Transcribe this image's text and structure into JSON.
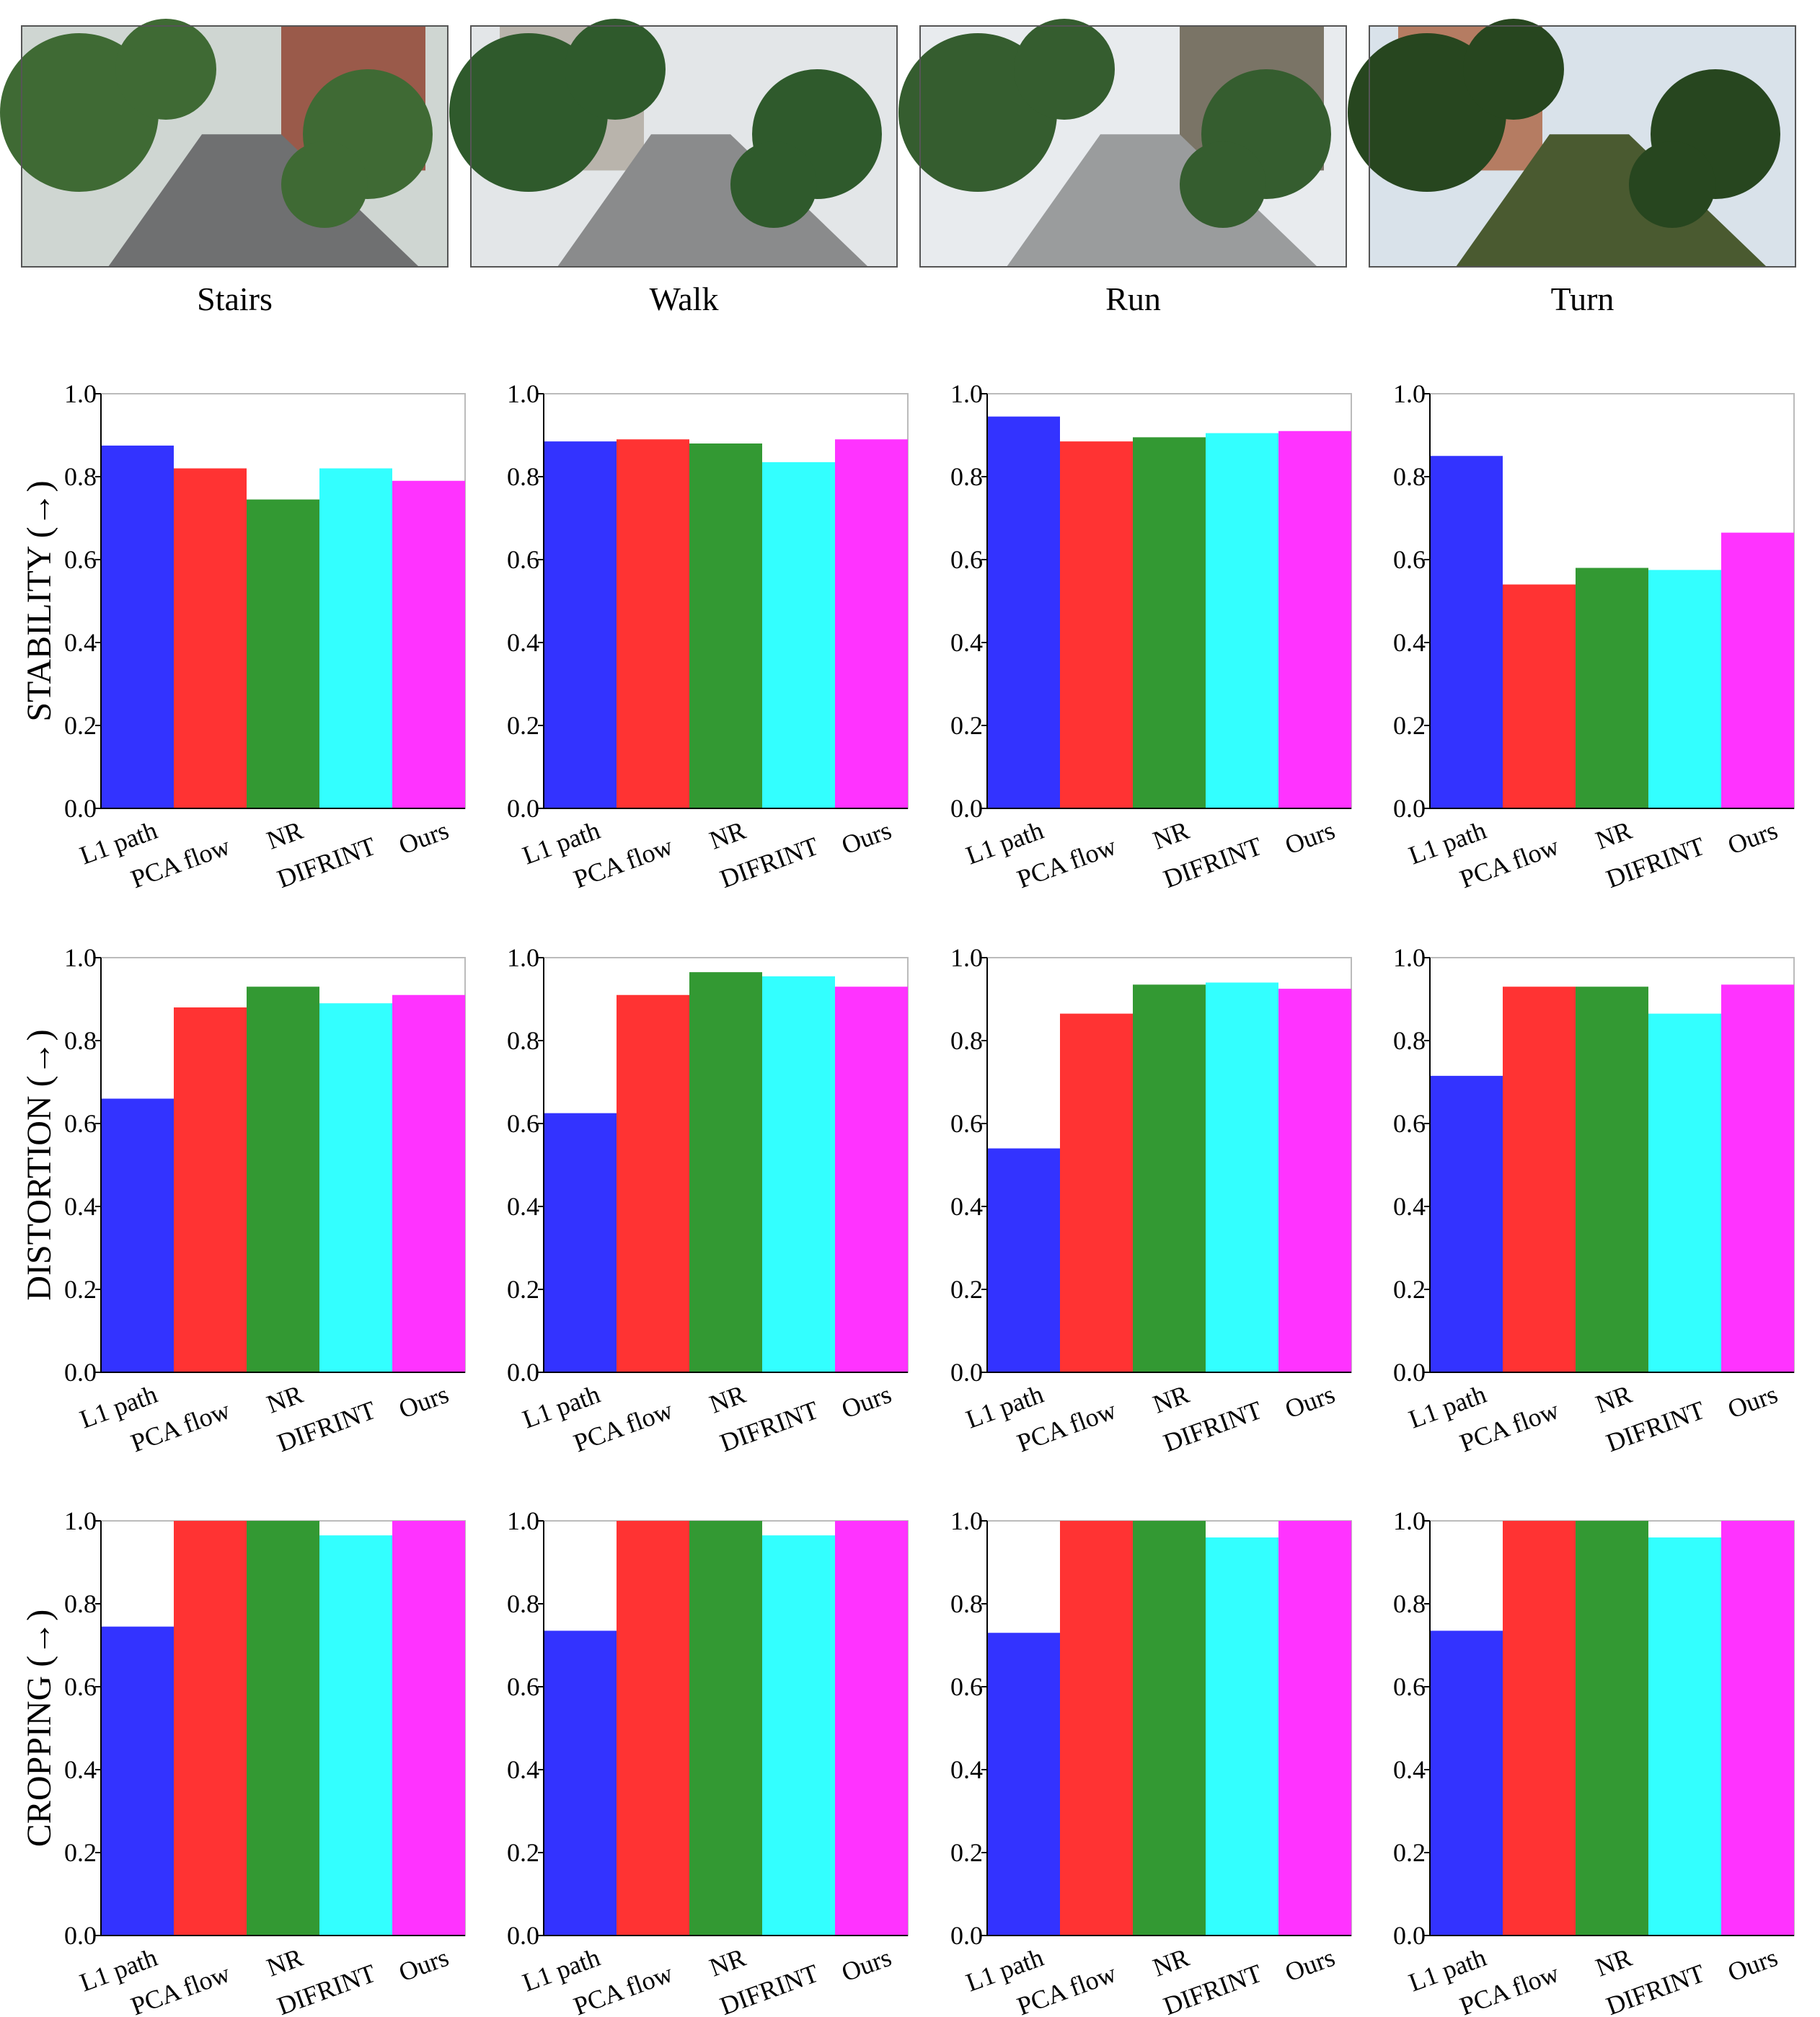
{
  "photos": [
    {
      "label": "Stairs"
    },
    {
      "label": "Walk"
    },
    {
      "label": "Run"
    },
    {
      "label": "Turn"
    }
  ],
  "chart_data": [
    {
      "type": "bar",
      "ylabel": "STABILITY (→)",
      "categories": [
        "L1 path",
        "PCA flow",
        "NR",
        "DIFRINT",
        "Ours"
      ],
      "values": [
        0.875,
        0.82,
        0.745,
        0.82,
        0.79
      ],
      "colors": [
        "#3333ff",
        "#ff3333",
        "#339933",
        "#33ffff",
        "#ff33ff"
      ],
      "ylim": [
        0,
        1
      ],
      "yticks": [
        {
          "value": 0,
          "label": "0.0"
        },
        0.2,
        0.4,
        0.6,
        0.8,
        {
          "value": 1,
          "label": "1.0"
        }
      ]
    },
    {
      "type": "bar",
      "categories": [
        "L1 path",
        "PCA flow",
        "NR",
        "DIFRINT",
        "Ours"
      ],
      "values": [
        0.885,
        0.89,
        0.88,
        0.835,
        0.89
      ],
      "colors": [
        "#3333ff",
        "#ff3333",
        "#339933",
        "#33ffff",
        "#ff33ff"
      ],
      "ylim": [
        0,
        1
      ],
      "yticks": [
        {
          "value": 0,
          "label": "0.0"
        },
        0.2,
        0.4,
        0.6,
        0.8,
        {
          "value": 1,
          "label": "1.0"
        }
      ]
    },
    {
      "type": "bar",
      "categories": [
        "L1 path",
        "PCA flow",
        "NR",
        "DIFRINT",
        "Ours"
      ],
      "values": [
        0.945,
        0.885,
        0.895,
        0.905,
        0.91
      ],
      "colors": [
        "#3333ff",
        "#ff3333",
        "#339933",
        "#33ffff",
        "#ff33ff"
      ],
      "ylim": [
        0,
        1
      ],
      "yticks": [
        {
          "value": 0,
          "label": "0.0"
        },
        0.2,
        0.4,
        0.6,
        0.8,
        {
          "value": 1,
          "label": "1.0"
        }
      ]
    },
    {
      "type": "bar",
      "categories": [
        "L1 path",
        "PCA flow",
        "NR",
        "DIFRINT",
        "Ours"
      ],
      "values": [
        0.85,
        0.54,
        0.58,
        0.575,
        0.665
      ],
      "colors": [
        "#3333ff",
        "#ff3333",
        "#339933",
        "#33ffff",
        "#ff33ff"
      ],
      "ylim": [
        0,
        1
      ],
      "yticks": [
        {
          "value": 0,
          "label": "0.0"
        },
        0.2,
        0.4,
        0.6,
        0.8,
        {
          "value": 1,
          "label": "1.0"
        }
      ]
    },
    {
      "type": "bar",
      "ylabel": "DISTORTION (→)",
      "categories": [
        "L1 path",
        "PCA flow",
        "NR",
        "DIFRINT",
        "Ours"
      ],
      "values": [
        0.66,
        0.88,
        0.93,
        0.89,
        0.91
      ],
      "colors": [
        "#3333ff",
        "#ff3333",
        "#339933",
        "#33ffff",
        "#ff33ff"
      ],
      "ylim": [
        0,
        1
      ],
      "yticks": [
        {
          "value": 0,
          "label": "0.0"
        },
        0.2,
        0.4,
        0.6,
        0.8,
        {
          "value": 1,
          "label": "1.0"
        }
      ]
    },
    {
      "type": "bar",
      "categories": [
        "L1 path",
        "PCA flow",
        "NR",
        "DIFRINT",
        "Ours"
      ],
      "values": [
        0.625,
        0.91,
        0.965,
        0.955,
        0.93
      ],
      "colors": [
        "#3333ff",
        "#ff3333",
        "#339933",
        "#33ffff",
        "#ff33ff"
      ],
      "ylim": [
        0,
        1
      ],
      "yticks": [
        {
          "value": 0,
          "label": "0.0"
        },
        0.2,
        0.4,
        0.6,
        0.8,
        {
          "value": 1,
          "label": "1.0"
        }
      ]
    },
    {
      "type": "bar",
      "categories": [
        "L1 path",
        "PCA flow",
        "NR",
        "DIFRINT",
        "Ours"
      ],
      "values": [
        0.54,
        0.865,
        0.935,
        0.94,
        0.925
      ],
      "colors": [
        "#3333ff",
        "#ff3333",
        "#339933",
        "#33ffff",
        "#ff33ff"
      ],
      "ylim": [
        0,
        1
      ],
      "yticks": [
        {
          "value": 0,
          "label": "0.0"
        },
        0.2,
        0.4,
        0.6,
        0.8,
        {
          "value": 1,
          "label": "1.0"
        }
      ]
    },
    {
      "type": "bar",
      "categories": [
        "L1 path",
        "PCA flow",
        "NR",
        "DIFRINT",
        "Ours"
      ],
      "values": [
        0.715,
        0.93,
        0.93,
        0.865,
        0.935
      ],
      "colors": [
        "#3333ff",
        "#ff3333",
        "#339933",
        "#33ffff",
        "#ff33ff"
      ],
      "ylim": [
        0,
        1
      ],
      "yticks": [
        {
          "value": 0,
          "label": "0.0"
        },
        0.2,
        0.4,
        0.6,
        0.8,
        {
          "value": 1,
          "label": "1.0"
        }
      ]
    },
    {
      "type": "bar",
      "ylabel": "CROPPING (→)",
      "categories": [
        "L1 path",
        "PCA flow",
        "NR",
        "DIFRINT",
        "Ours"
      ],
      "values": [
        0.745,
        1.0,
        1.0,
        0.965,
        1.0
      ],
      "colors": [
        "#3333ff",
        "#ff3333",
        "#339933",
        "#33ffff",
        "#ff33ff"
      ],
      "ylim": [
        0,
        1
      ],
      "yticks": [
        {
          "value": 0,
          "label": "0.0"
        },
        0.2,
        0.4,
        0.6,
        0.8,
        {
          "value": 1,
          "label": "1.0"
        }
      ]
    },
    {
      "type": "bar",
      "categories": [
        "L1 path",
        "PCA flow",
        "NR",
        "DIFRINT",
        "Ours"
      ],
      "values": [
        0.735,
        1.0,
        1.0,
        0.965,
        1.0
      ],
      "colors": [
        "#3333ff",
        "#ff3333",
        "#339933",
        "#33ffff",
        "#ff33ff"
      ],
      "ylim": [
        0,
        1
      ],
      "yticks": [
        {
          "value": 0,
          "label": "0.0"
        },
        0.2,
        0.4,
        0.6,
        0.8,
        {
          "value": 1,
          "label": "1.0"
        }
      ]
    },
    {
      "type": "bar",
      "categories": [
        "L1 path",
        "PCA flow",
        "NR",
        "DIFRINT",
        "Ours"
      ],
      "values": [
        0.73,
        1.0,
        1.0,
        0.96,
        1.0
      ],
      "colors": [
        "#3333ff",
        "#ff3333",
        "#339933",
        "#33ffff",
        "#ff33ff"
      ],
      "ylim": [
        0,
        1
      ],
      "yticks": [
        {
          "value": 0,
          "label": "0.0"
        },
        0.2,
        0.4,
        0.6,
        0.8,
        {
          "value": 1,
          "label": "1.0"
        }
      ]
    },
    {
      "type": "bar",
      "categories": [
        "L1 path",
        "PCA flow",
        "NR",
        "DIFRINT",
        "Ours"
      ],
      "values": [
        0.735,
        1.0,
        1.0,
        0.96,
        1.0
      ],
      "colors": [
        "#3333ff",
        "#ff3333",
        "#339933",
        "#33ffff",
        "#ff33ff"
      ],
      "ylim": [
        0,
        1
      ],
      "yticks": [
        {
          "value": 0,
          "label": "0.0"
        },
        0.2,
        0.4,
        0.6,
        0.8,
        {
          "value": 1,
          "label": "1.0"
        }
      ]
    }
  ]
}
